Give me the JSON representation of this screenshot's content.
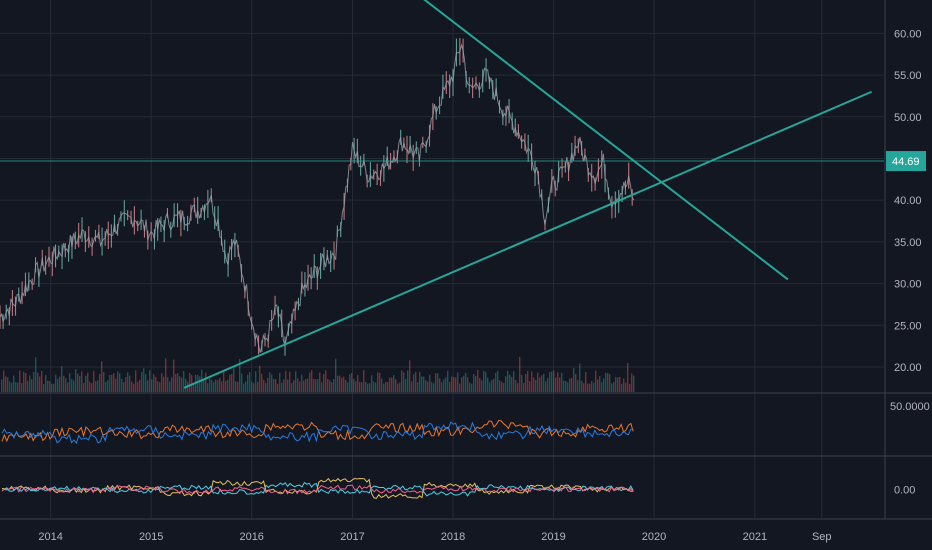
{
  "chart_data": [
    {
      "type": "line",
      "panel": "price",
      "title": "",
      "y_axis_position": "right",
      "ylim": [
        17,
        64
      ],
      "yticks": [
        "20.00",
        "25.00",
        "30.00",
        "35.00",
        "40.00",
        "45.00",
        "50.00",
        "55.00",
        "60.00"
      ],
      "grid": true,
      "series": [
        {
          "color": "#9aa0aa",
          "x": [
            "2013-07-01",
            "2013-09-01",
            "2013-11-01",
            "2014-01-01",
            "2014-03-01",
            "2014-05-01",
            "2014-07-01",
            "2014-09-01",
            "2014-11-01",
            "2015-01-01",
            "2015-03-01",
            "2015-05-01",
            "2015-07-01",
            "2015-08-01",
            "2015-09-01",
            "2015-10-01",
            "2015-11-01",
            "2015-12-01",
            "2016-01-01",
            "2016-02-01",
            "2016-03-01",
            "2016-04-01",
            "2016-05-01",
            "2016-07-01",
            "2016-09-01",
            "2016-11-01",
            "2017-01-01",
            "2017-03-01",
            "2017-05-01",
            "2017-07-01",
            "2017-09-01",
            "2017-11-01",
            "2018-01-01",
            "2018-02-01",
            "2018-03-01",
            "2018-05-01",
            "2018-07-01",
            "2018-09-01",
            "2018-10-01",
            "2018-11-01",
            "2018-12-01",
            "2019-01-01",
            "2019-02-01",
            "2019-04-01",
            "2019-05-01",
            "2019-06-01",
            "2019-07-01",
            "2019-08-01",
            "2019-09-01",
            "2019-10-01",
            "2019-10-20"
          ],
          "values": [
            26,
            28,
            31,
            33,
            34.5,
            36,
            35,
            37,
            38,
            36,
            37.5,
            38,
            39,
            40.5,
            37.5,
            33,
            35,
            31,
            26,
            22,
            24,
            27,
            22.5,
            29,
            32,
            34,
            46,
            43,
            44,
            47,
            45,
            51,
            55,
            59,
            53,
            55,
            51,
            48,
            46,
            44,
            38,
            42,
            43,
            47,
            44.5,
            43,
            44.5,
            40,
            41,
            42,
            40
          ]
        }
      ],
      "annotations": [
        {
          "type": "trendline",
          "color": "#26a69a",
          "points": [
            [
              "2015-05-01",
              17.5
            ],
            [
              "2022-03-01",
              53
            ]
          ]
        },
        {
          "type": "trendline",
          "color": "#26a69a",
          "points": [
            [
              "2017-09-01",
              64.5
            ],
            [
              "2021-05-01",
              30.5
            ]
          ]
        },
        {
          "type": "horizontal-line",
          "color": "#26a69a",
          "value": 44.69
        }
      ],
      "last_price_label": "44.69"
    },
    {
      "type": "line",
      "panel": "oscillator",
      "yticks": [
        "50.0000"
      ],
      "series": [
        {
          "color": "#e8772e",
          "values": [
            32,
            38,
            35,
            40,
            36,
            44,
            34,
            42,
            38,
            46,
            36,
            42
          ]
        },
        {
          "color": "#2b7bde",
          "values": [
            36,
            30,
            40,
            34,
            42,
            32,
            40,
            34,
            44,
            34,
            40,
            36
          ]
        }
      ]
    },
    {
      "type": "line",
      "panel": "momentum",
      "yticks": [
        "0.00"
      ],
      "series": [
        {
          "color": "#e0c060",
          "values": [
            0.5,
            -0.5,
            1,
            -2,
            3,
            -1,
            4,
            -3,
            2,
            -1,
            1,
            0
          ]
        },
        {
          "color": "#4dd0e1",
          "values": [
            0,
            0.5,
            -0.5,
            1,
            -1,
            2,
            -1,
            1,
            -2,
            1,
            0,
            0.5
          ]
        },
        {
          "color": "#f06292",
          "values": [
            0,
            -0.3,
            0.5,
            -0.8,
            0.4,
            -1,
            0.8,
            -0.6,
            0.5,
            -0.3,
            0.2,
            0
          ]
        }
      ]
    }
  ],
  "x_axis": {
    "labels": [
      {
        "text": "2014",
        "date": "2014-01-01"
      },
      {
        "text": "2015",
        "date": "2015-01-01"
      },
      {
        "text": "2016",
        "date": "2016-01-01"
      },
      {
        "text": "2017",
        "date": "2017-01-01"
      },
      {
        "text": "2018",
        "date": "2018-01-01"
      },
      {
        "text": "2019",
        "date": "2019-01-01"
      },
      {
        "text": "2020",
        "date": "2020-01-01"
      },
      {
        "text": "2021",
        "date": "2021-01-01"
      },
      {
        "text": "Sep",
        "date": "2021-09-01"
      }
    ],
    "range": [
      "2013-07-01",
      "2022-04-15"
    ]
  },
  "colors": {
    "background": "#131722",
    "grid": "#252a36",
    "axis_text": "#b2b5be",
    "trendline": "#26a69a",
    "up_volume": "#26a69a",
    "down_volume": "#ef5350"
  }
}
